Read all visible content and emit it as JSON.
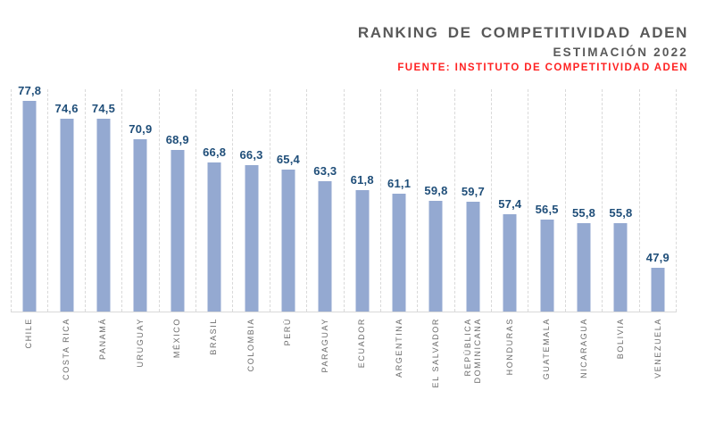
{
  "chart_data": {
    "type": "bar",
    "title": "RANKING DE COMPETITIVIDAD ADEN",
    "subtitle": "ESTIMACIÓN 2022",
    "source": "FUENTE: INSTITUTO DE COMPETITIVIDAD ADEN",
    "categories": [
      "CHILE",
      "COSTA RICA",
      "PANAMÁ",
      "URUGUAY",
      "MÉXICO",
      "BRASIL",
      "COLOMBIA",
      "PERÚ",
      "PARAGUAY",
      "ECUADOR",
      "ARGENTINA",
      "EL SALVADOR",
      "REPÚBLICA\nDOMINICANA",
      "HONDURAS",
      "GUATEMALA",
      "NICARAGUA",
      "BOLIVIA",
      "VENEZUELA"
    ],
    "values": [
      77.8,
      74.6,
      74.5,
      70.9,
      68.9,
      66.8,
      66.3,
      65.4,
      63.3,
      61.8,
      61.1,
      59.8,
      59.7,
      57.4,
      56.5,
      55.8,
      55.8,
      47.9
    ],
    "display_values": [
      "77,8",
      "74,6",
      "74,5",
      "70,9",
      "68,9",
      "66,8",
      "66,3",
      "65,4",
      "63,3",
      "61,8",
      "61,1",
      "59,8",
      "59,7",
      "57,4",
      "56,5",
      "55,8",
      "55,8",
      "47,9"
    ],
    "xlabel": "",
    "ylabel": "",
    "ylim": [
      40,
      80
    ],
    "grid": "vertical category separators, dashed; baseline only",
    "legend": "none",
    "bar_color": "#94a9d1",
    "value_label_color": "#1f4e79",
    "title_color": "#595959",
    "source_color": "#ff2222",
    "gridline_color": "#d9d9d9",
    "axis_label_color": "#6b6b6b"
  }
}
